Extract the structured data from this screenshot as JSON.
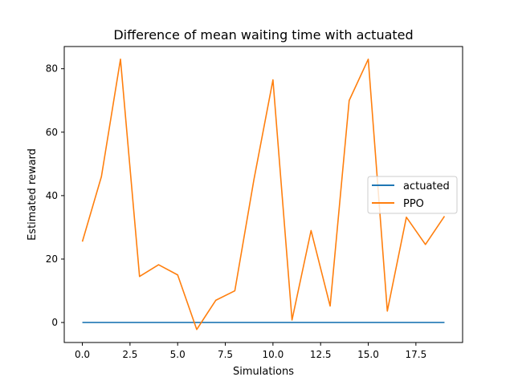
{
  "chart_data": {
    "type": "line",
    "title": "Difference of mean waiting time with actuated",
    "xlabel": "Simulations",
    "ylabel": "Estimated reward",
    "xlim": [
      -0.95,
      19.95
    ],
    "ylim": [
      -6.3,
      87.0
    ],
    "xticks": [
      0.0,
      2.5,
      5.0,
      7.5,
      10.0,
      12.5,
      15.0,
      17.5
    ],
    "xtick_labels": [
      "0.0",
      "2.5",
      "5.0",
      "7.5",
      "10.0",
      "12.5",
      "15.0",
      "17.5"
    ],
    "yticks": [
      0,
      20,
      40,
      60,
      80
    ],
    "ytick_labels": [
      "0",
      "20",
      "40",
      "60",
      "80"
    ],
    "grid": false,
    "legend_position": "center-right",
    "x": [
      0,
      1,
      2,
      3,
      4,
      5,
      6,
      7,
      8,
      9,
      10,
      11,
      12,
      13,
      14,
      15,
      16,
      17,
      18,
      19
    ],
    "series": [
      {
        "name": "actuated",
        "color": "#1f77b4",
        "values": [
          0,
          0,
          0,
          0,
          0,
          0,
          0,
          0,
          0,
          0,
          0,
          0,
          0,
          0,
          0,
          0,
          0,
          0,
          0,
          0
        ]
      },
      {
        "name": "PPO",
        "color": "#ff7f0e",
        "values": [
          25.5,
          46.0,
          83.0,
          14.5,
          18.2,
          15.0,
          -2.2,
          7.0,
          10.0,
          45.0,
          76.5,
          0.8,
          29.0,
          5.2,
          70.0,
          83.0,
          3.6,
          33.2,
          24.6,
          33.5
        ]
      }
    ]
  }
}
